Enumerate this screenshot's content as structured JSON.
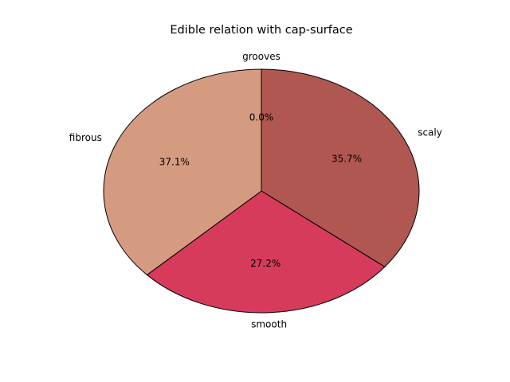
{
  "chart_data": {
    "type": "pie",
    "title": "Edible relation with cap-surface",
    "slices": [
      {
        "label": "grooves",
        "value": 0.0,
        "pct_label": "0.0%",
        "color": "#d9c9a3"
      },
      {
        "label": "scaly",
        "value": 35.7,
        "pct_label": "35.7%",
        "color": "#b05751"
      },
      {
        "label": "smooth",
        "value": 27.2,
        "pct_label": "27.2%",
        "color": "#d73b5b"
      },
      {
        "label": "fibrous",
        "value": 37.1,
        "pct_label": "37.1%",
        "color": "#d59b80"
      }
    ],
    "start_angle_deg": 90,
    "direction": "clockwise",
    "edge_color": "#000000"
  }
}
